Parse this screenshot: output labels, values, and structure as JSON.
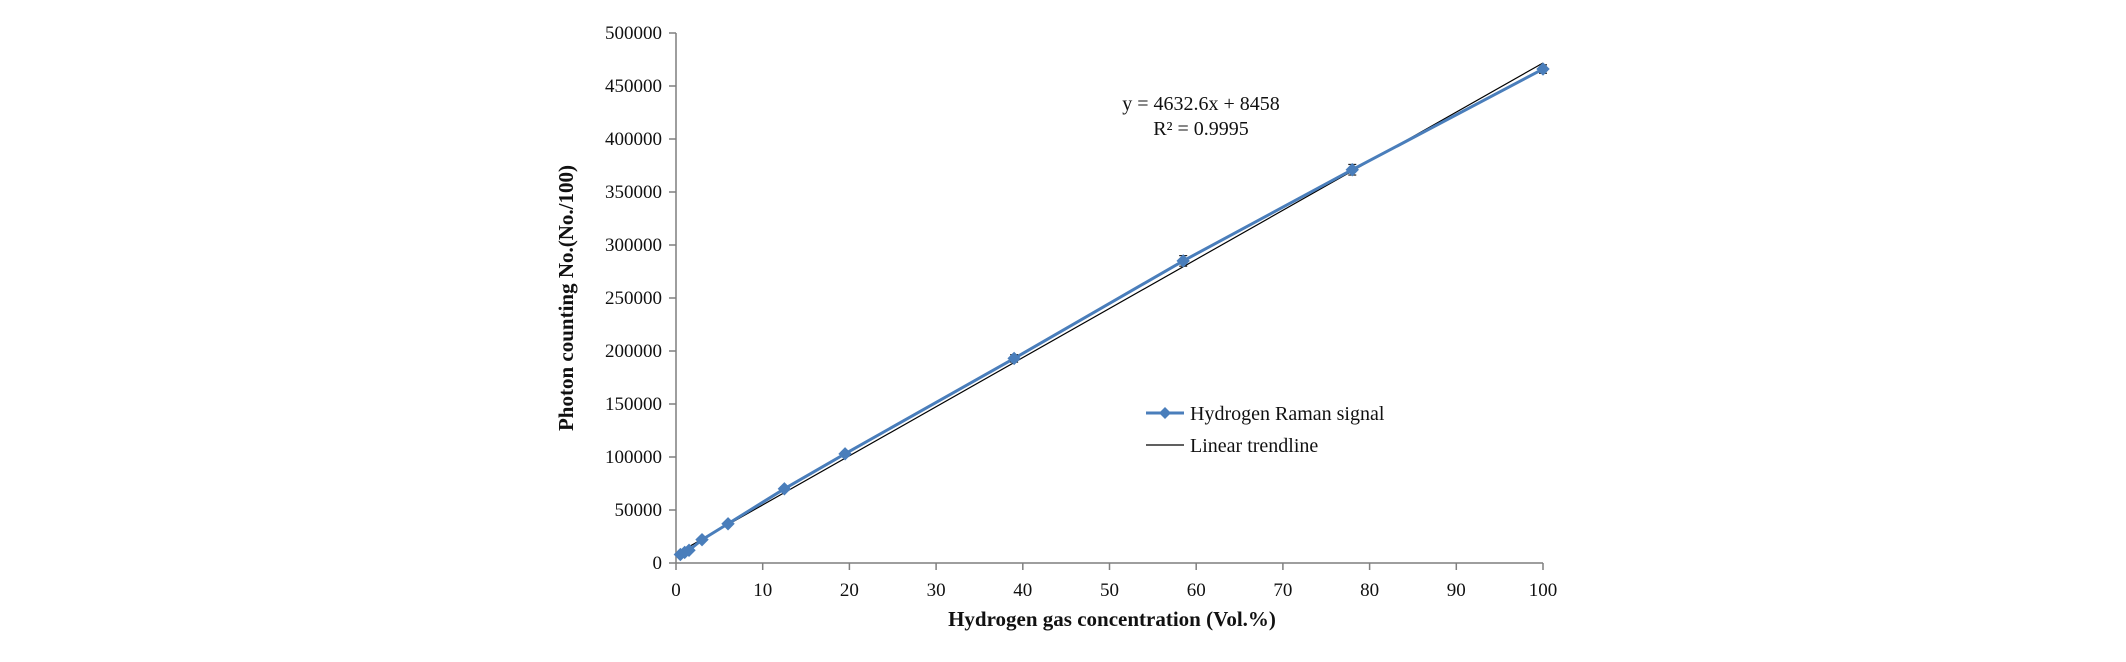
{
  "chart_data": {
    "type": "line",
    "title": "",
    "xlabel": "Hydrogen gas concentration (Vol.%)",
    "ylabel": "Photon counting No.(No./100)",
    "xlim": [
      0,
      100
    ],
    "ylim": [
      0,
      500000
    ],
    "x_ticks": [
      "0",
      "10",
      "20",
      "30",
      "40",
      "50",
      "60",
      "70",
      "80",
      "90",
      "100"
    ],
    "y_ticks": [
      "0",
      "50000",
      "100000",
      "150000",
      "200000",
      "250000",
      "300000",
      "350000",
      "400000",
      "450000",
      "500000"
    ],
    "series": [
      {
        "name": "Hydrogen Raman signal",
        "color": "#4a7ebb",
        "marker": "diamond",
        "x": [
          0.5,
          1,
          1.5,
          3,
          6,
          12.5,
          19.5,
          39,
          58.5,
          78,
          100
        ],
        "y": [
          8000,
          10000,
          12000,
          22000,
          37000,
          70000,
          103000,
          193000,
          285000,
          371000,
          466000
        ],
        "error": [
          1000,
          1000,
          1000,
          1500,
          1500,
          2000,
          2000,
          3500,
          5000,
          5000,
          4000
        ]
      },
      {
        "name": "Linear trendline",
        "color": "#000000",
        "slope": 4632.6,
        "intercept": 8458
      }
    ],
    "annotations": {
      "equation": "y = 4632.6x + 8458",
      "r_squared": "R² = 0.9995"
    },
    "legend_position": "center-right",
    "grid": false
  }
}
